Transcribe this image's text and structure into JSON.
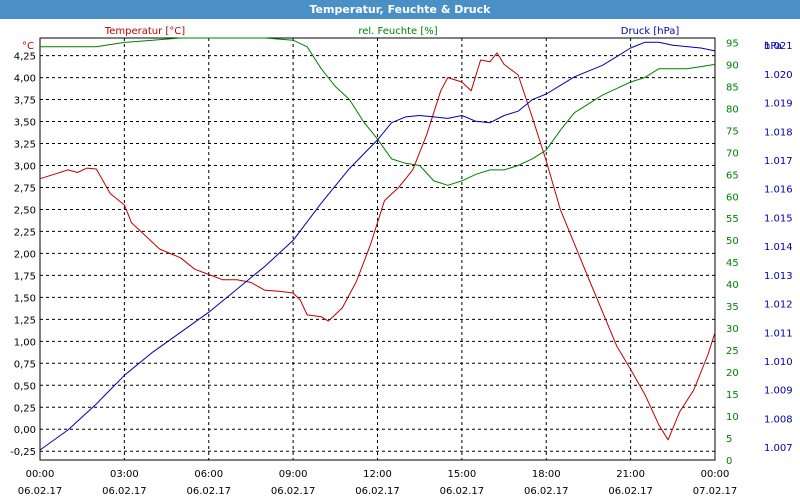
{
  "window": {
    "title": "Temperatur, Feuchte & Druck"
  },
  "colors": {
    "temperature": "#c00000",
    "humidity": "#008000",
    "pressure": "#0000b0",
    "title_bar": "#4a90c6",
    "grid": "#000000"
  },
  "chart_data": {
    "type": "line",
    "title": "Temperatur, Feuchte & Druck",
    "grid": true,
    "x": {
      "tick_times": [
        "00:00",
        "03:00",
        "06:00",
        "09:00",
        "12:00",
        "15:00",
        "18:00",
        "21:00",
        "00:00"
      ],
      "tick_dates": [
        "06.02.17",
        "06.02.17",
        "06.02.17",
        "06.02.17",
        "06.02.17",
        "06.02.17",
        "06.02.17",
        "06.02.17",
        "07.02.17"
      ],
      "range": [
        "06.02.17 00:00",
        "07.02.17 00:00"
      ]
    },
    "axes": {
      "left": {
        "label": "Temperatur [°C]",
        "unit": "°C",
        "ylim": [
          -0.35,
          4.45
        ],
        "ticks": [
          "4,25",
          "4,00",
          "3,75",
          "3,50",
          "3,25",
          "3,00",
          "2,75",
          "2,50",
          "2,25",
          "2,00",
          "1,75",
          "1,50",
          "1,25",
          "1,00",
          "0,75",
          "0,50",
          "0,25",
          "0,00",
          "-0,25"
        ]
      },
      "middle": {
        "label": "rel. Feuchte [%]",
        "unit": "%",
        "ylim": [
          0,
          96
        ],
        "ticks": [
          "95",
          "90",
          "85",
          "80",
          "75",
          "70",
          "65",
          "60",
          "55",
          "50",
          "45",
          "40",
          "35",
          "30",
          "25",
          "20",
          "15",
          "10",
          "5",
          "0"
        ]
      },
      "right": {
        "label": "Druck [hPa]",
        "unit": "hPa",
        "ylim": [
          1006.55,
          1021.25
        ],
        "ticks": [
          "1.021",
          "1.020",
          "1.019",
          "1.018",
          "1.017",
          "1.016",
          "1.015",
          "1.014",
          "1.013",
          "1.012",
          "1.011",
          "1.010",
          "1.009",
          "1.008",
          "1.007"
        ]
      }
    },
    "series": [
      {
        "name": "Temperatur [°C]",
        "axis": "left",
        "color": "#c00000",
        "points": [
          [
            "00:00",
            2.85
          ],
          [
            "00:30",
            2.9
          ],
          [
            "01:00",
            2.95
          ],
          [
            "01:20",
            2.92
          ],
          [
            "01:40",
            2.97
          ],
          [
            "02:00",
            2.96
          ],
          [
            "02:30",
            2.68
          ],
          [
            "03:00",
            2.55
          ],
          [
            "03:15",
            2.35
          ],
          [
            "03:45",
            2.2
          ],
          [
            "04:15",
            2.05
          ],
          [
            "05:00",
            1.95
          ],
          [
            "05:30",
            1.82
          ],
          [
            "06:00",
            1.76
          ],
          [
            "06:30",
            1.7
          ],
          [
            "07:00",
            1.7
          ],
          [
            "07:30",
            1.67
          ],
          [
            "08:00",
            1.58
          ],
          [
            "08:30",
            1.57
          ],
          [
            "09:00",
            1.55
          ],
          [
            "09:15",
            1.47
          ],
          [
            "09:30",
            1.3
          ],
          [
            "10:00",
            1.28
          ],
          [
            "10:15",
            1.23
          ],
          [
            "10:45",
            1.38
          ],
          [
            "11:15",
            1.68
          ],
          [
            "11:45",
            2.1
          ],
          [
            "12:15",
            2.6
          ],
          [
            "12:45",
            2.75
          ],
          [
            "13:15",
            2.95
          ],
          [
            "13:45",
            3.35
          ],
          [
            "14:15",
            3.85
          ],
          [
            "14:30",
            4.0
          ],
          [
            "15:00",
            3.95
          ],
          [
            "15:20",
            3.85
          ],
          [
            "15:40",
            4.2
          ],
          [
            "16:00",
            4.18
          ],
          [
            "16:15",
            4.28
          ],
          [
            "16:30",
            4.15
          ],
          [
            "17:00",
            4.03
          ],
          [
            "17:30",
            3.55
          ],
          [
            "18:00",
            3.05
          ],
          [
            "18:30",
            2.5
          ],
          [
            "19:30",
            1.72
          ],
          [
            "20:30",
            0.95
          ],
          [
            "21:00",
            0.68
          ],
          [
            "21:30",
            0.4
          ],
          [
            "22:00",
            0.05
          ],
          [
            "22:20",
            -0.12
          ],
          [
            "22:45",
            0.2
          ],
          [
            "23:15",
            0.45
          ],
          [
            "23:45",
            0.85
          ],
          [
            "24:00",
            1.1
          ]
        ]
      },
      {
        "name": "rel. Feuchte [%]",
        "axis": "middle",
        "color": "#008000",
        "points": [
          [
            "00:00",
            94
          ],
          [
            "01:00",
            94
          ],
          [
            "02:00",
            94
          ],
          [
            "03:00",
            95
          ],
          [
            "04:00",
            95.5
          ],
          [
            "05:00",
            96
          ],
          [
            "06:00",
            96
          ],
          [
            "07:00",
            96
          ],
          [
            "08:00",
            96
          ],
          [
            "09:00",
            95.5
          ],
          [
            "09:30",
            94
          ],
          [
            "10:00",
            89
          ],
          [
            "10:30",
            85
          ],
          [
            "11:00",
            82
          ],
          [
            "11:30",
            77
          ],
          [
            "12:00",
            73
          ],
          [
            "12:30",
            68.5
          ],
          [
            "13:00",
            67.5
          ],
          [
            "13:30",
            67
          ],
          [
            "14:00",
            63.5
          ],
          [
            "14:30",
            62.5
          ],
          [
            "15:00",
            63.5
          ],
          [
            "15:30",
            65
          ],
          [
            "16:00",
            66
          ],
          [
            "16:30",
            66
          ],
          [
            "17:00",
            67
          ],
          [
            "17:30",
            68.5
          ],
          [
            "18:00",
            70.5
          ],
          [
            "18:30",
            75
          ],
          [
            "19:00",
            79
          ],
          [
            "19:30",
            81
          ],
          [
            "20:00",
            83
          ],
          [
            "20:30",
            84.5
          ],
          [
            "21:00",
            86
          ],
          [
            "21:30",
            87
          ],
          [
            "22:00",
            89
          ],
          [
            "23:00",
            89
          ],
          [
            "23:30",
            89.5
          ],
          [
            "24:00",
            90
          ]
        ]
      },
      {
        "name": "Druck [hPa]",
        "axis": "right",
        "color": "#0000b0",
        "points": [
          [
            "00:00",
            1006.9
          ],
          [
            "01:00",
            1007.6
          ],
          [
            "02:00",
            1008.5
          ],
          [
            "03:00",
            1009.5
          ],
          [
            "04:00",
            1010.3
          ],
          [
            "05:00",
            1011.0
          ],
          [
            "06:00",
            1011.7
          ],
          [
            "07:00",
            1012.5
          ],
          [
            "08:00",
            1013.3
          ],
          [
            "09:00",
            1014.2
          ],
          [
            "10:00",
            1015.5
          ],
          [
            "11:00",
            1016.7
          ],
          [
            "12:00",
            1017.7
          ],
          [
            "12:30",
            1018.3
          ],
          [
            "13:00",
            1018.5
          ],
          [
            "13:30",
            1018.55
          ],
          [
            "14:00",
            1018.5
          ],
          [
            "14:30",
            1018.45
          ],
          [
            "15:00",
            1018.55
          ],
          [
            "15:30",
            1018.35
          ],
          [
            "16:00",
            1018.3
          ],
          [
            "16:30",
            1018.55
          ],
          [
            "17:00",
            1018.7
          ],
          [
            "17:30",
            1019.1
          ],
          [
            "18:00",
            1019.3
          ],
          [
            "18:30",
            1019.6
          ],
          [
            "19:00",
            1019.9
          ],
          [
            "20:00",
            1020.3
          ],
          [
            "20:30",
            1020.6
          ],
          [
            "21:00",
            1020.9
          ],
          [
            "21:30",
            1021.1
          ],
          [
            "22:00",
            1021.1
          ],
          [
            "22:30",
            1021.0
          ],
          [
            "23:00",
            1020.95
          ],
          [
            "23:30",
            1020.9
          ],
          [
            "24:00",
            1020.8
          ]
        ]
      }
    ]
  }
}
